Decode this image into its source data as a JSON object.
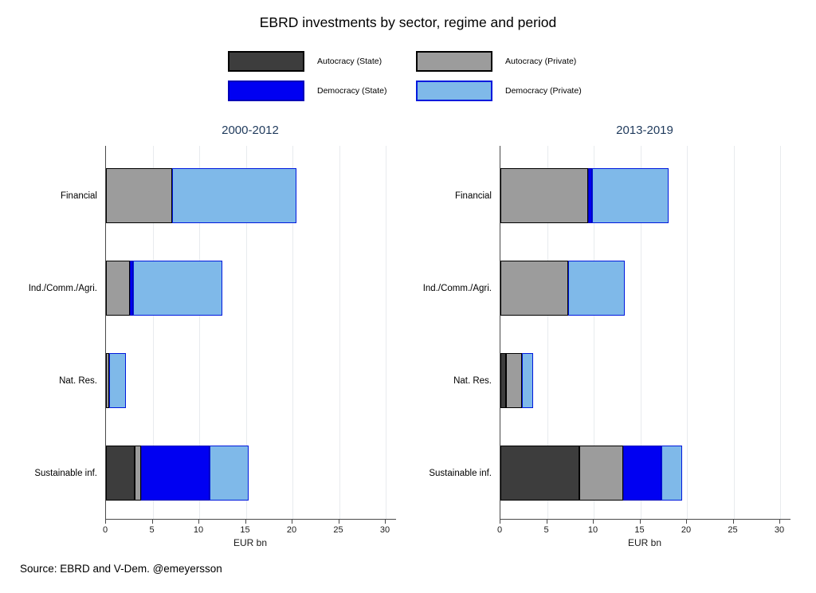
{
  "title": "EBRD investments by sector, regime and period",
  "source": "Source: EBRD and V-Dem. @emeyersson",
  "legend": {
    "items": [
      {
        "label": "Autocracy (State)",
        "fill": "#3d3d3d",
        "border": "#000000"
      },
      {
        "label": "Autocracy (Private)",
        "fill": "#9c9c9c",
        "border": "#000000"
      },
      {
        "label": "Democracy (State)",
        "fill": "#0000f2",
        "border": "#0000b8"
      },
      {
        "label": "Democracy (Private)",
        "fill": "#7fb9e9",
        "border": "#0019dd"
      }
    ]
  },
  "axis": {
    "xlabel": "EUR bn",
    "xticks": [
      0,
      5,
      10,
      15,
      20,
      25,
      30
    ],
    "xlim": [
      0,
      31
    ]
  },
  "chart_data": [
    {
      "type": "bar",
      "orientation": "horizontal",
      "stacked": true,
      "grid": true,
      "title": "2000-2012",
      "xlabel": "EUR bn",
      "xlim": [
        0,
        31
      ],
      "xticks": [
        0,
        5,
        10,
        15,
        20,
        25,
        30
      ],
      "categories": [
        "Financial",
        "Ind./Comm./Agri.",
        "Nat. Res.",
        "Sustainable inf."
      ],
      "series": [
        {
          "name": "Autocracy (State)",
          "values": [
            0,
            0,
            0,
            3.1
          ]
        },
        {
          "name": "Autocracy (Private)",
          "values": [
            7.1,
            2.6,
            0.3,
            0.7
          ]
        },
        {
          "name": "Democracy (State)",
          "values": [
            0,
            0.3,
            0,
            7.3
          ]
        },
        {
          "name": "Democracy (Private)",
          "values": [
            13.3,
            9.6,
            1.8,
            4.2
          ]
        }
      ]
    },
    {
      "type": "bar",
      "orientation": "horizontal",
      "stacked": true,
      "grid": true,
      "title": "2013-2019",
      "xlabel": "EUR bn",
      "xlim": [
        0,
        31
      ],
      "xticks": [
        0,
        5,
        10,
        15,
        20,
        25,
        30
      ],
      "categories": [
        "Financial",
        "Ind./Comm./Agri.",
        "Nat. Res.",
        "Sustainable inf."
      ],
      "series": [
        {
          "name": "Autocracy (State)",
          "values": [
            0,
            0,
            0.6,
            8.5
          ]
        },
        {
          "name": "Autocracy (Private)",
          "values": [
            9.4,
            7.3,
            1.7,
            4.7
          ]
        },
        {
          "name": "Democracy (State)",
          "values": [
            0.4,
            0,
            0,
            4.1
          ]
        },
        {
          "name": "Democracy (Private)",
          "values": [
            8.2,
            6.0,
            1.2,
            2.2
          ]
        }
      ]
    }
  ]
}
